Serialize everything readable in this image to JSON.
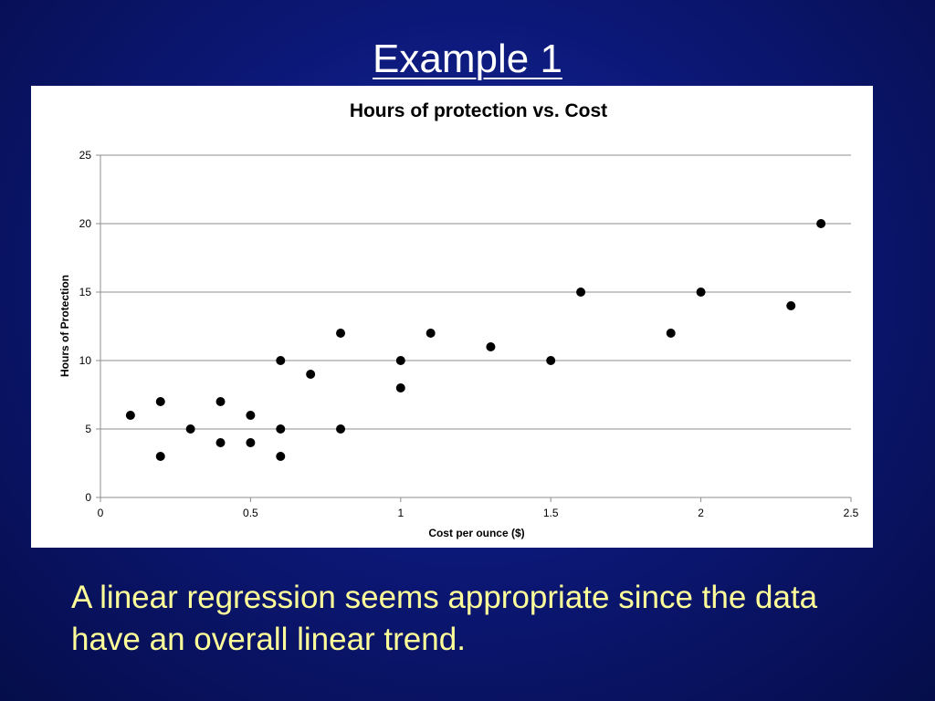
{
  "slide": {
    "title": "Example 1",
    "caption": "A linear regression seems appropriate since the data have an overall linear trend."
  },
  "chart_data": {
    "type": "scatter",
    "title": "Hours of protection vs. Cost",
    "xlabel": "Cost per ounce ($)",
    "ylabel": "Hours of Protection",
    "xlim": [
      0,
      2.5
    ],
    "ylim": [
      0,
      25
    ],
    "x_ticks": [
      "0",
      "0.5",
      "1",
      "1.5",
      "2",
      "2.5"
    ],
    "y_ticks": [
      "0",
      "5",
      "10",
      "15",
      "20",
      "25"
    ],
    "grid": "horizontal",
    "legend": "none",
    "points": [
      {
        "x": 0.1,
        "y": 6
      },
      {
        "x": 0.2,
        "y": 7
      },
      {
        "x": 0.2,
        "y": 3
      },
      {
        "x": 0.3,
        "y": 5
      },
      {
        "x": 0.4,
        "y": 7
      },
      {
        "x": 0.4,
        "y": 4
      },
      {
        "x": 0.5,
        "y": 6
      },
      {
        "x": 0.5,
        "y": 4
      },
      {
        "x": 0.6,
        "y": 10
      },
      {
        "x": 0.6,
        "y": 5
      },
      {
        "x": 0.6,
        "y": 3
      },
      {
        "x": 0.7,
        "y": 9
      },
      {
        "x": 0.8,
        "y": 12
      },
      {
        "x": 0.8,
        "y": 5
      },
      {
        "x": 1.0,
        "y": 10
      },
      {
        "x": 1.0,
        "y": 8
      },
      {
        "x": 1.1,
        "y": 12
      },
      {
        "x": 1.3,
        "y": 11
      },
      {
        "x": 1.5,
        "y": 10
      },
      {
        "x": 1.6,
        "y": 15
      },
      {
        "x": 1.9,
        "y": 12
      },
      {
        "x": 2.0,
        "y": 15
      },
      {
        "x": 2.3,
        "y": 14
      },
      {
        "x": 2.4,
        "y": 20
      }
    ],
    "colors": {
      "marker": "#000000",
      "gridline": "#8c8c8c",
      "axis": "#8c8c8c"
    }
  }
}
